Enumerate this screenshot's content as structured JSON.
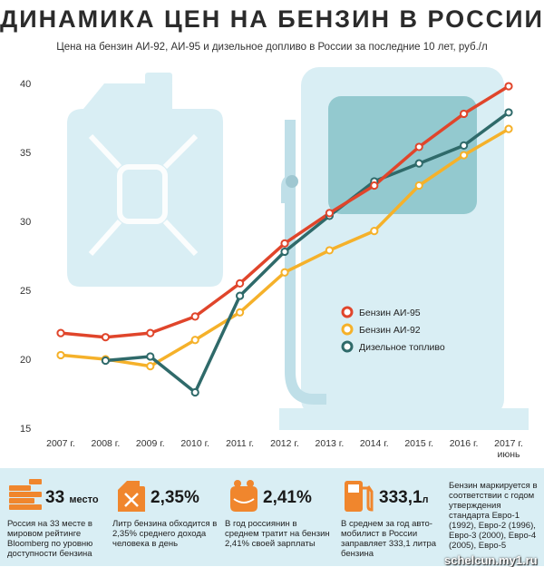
{
  "header": {
    "title": "ДИНАМИКА ЦЕН НА БЕНЗИН В РОССИИ",
    "subtitle": "Цена на бензин АИ-92, АИ-95 и дизельное допливо в России за последние 10 лет, руб./л"
  },
  "colors": {
    "ai95": "#e0452b",
    "ai92": "#f5b12a",
    "diesel": "#2f6a6a",
    "background_shape": "#d9eef4",
    "stats_band": "#d9eef4",
    "stat_icon": "#f0862d"
  },
  "chart_data": {
    "type": "line",
    "categories": [
      "2007 г.",
      "2008 г.",
      "2009 г.",
      "2010 г.",
      "2011 г.",
      "2012 г.",
      "2013 г.",
      "2014 г.",
      "2015 г.",
      "2016 г.",
      "2017 г."
    ],
    "last_category_note": "июнь",
    "yticks": [
      15,
      20,
      25,
      30,
      35,
      40
    ],
    "ylim": [
      15,
      40
    ],
    "grid": false,
    "legend_position": "center-right",
    "series": [
      {
        "name": "Бензин АИ-95",
        "key": "ai95",
        "values": [
          21.9,
          21.6,
          21.9,
          23.1,
          25.5,
          28.4,
          30.6,
          32.6,
          35.4,
          37.8,
          39.8
        ]
      },
      {
        "name": "Бензин АИ-92",
        "key": "ai92",
        "values": [
          20.3,
          20.0,
          19.5,
          21.4,
          23.4,
          26.3,
          27.9,
          29.3,
          32.6,
          34.8,
          36.7
        ]
      },
      {
        "name": "Дизельное топливо",
        "key": "diesel",
        "values": [
          null,
          19.9,
          20.2,
          17.6,
          24.6,
          27.8,
          30.4,
          32.9,
          34.2,
          35.5,
          37.9
        ]
      }
    ]
  },
  "stats": [
    {
      "big": "33",
      "big_suffix": "место",
      "icon": "stacked-coins-icon",
      "desc": "Россия на 33 месте в мировом рейтинге Bloomberg по уровню доступности бензина"
    },
    {
      "big": "2,35%",
      "big_suffix": "",
      "icon": "canister-icon",
      "desc": "Литр бензина обходится в 2,35% среднего дохода человека в день"
    },
    {
      "big": "2,41%",
      "big_suffix": "",
      "icon": "wallet-icon",
      "desc": "В год россиянин в среднем тратит на бензин 2,41% своей зарплаты"
    },
    {
      "big": "333,1",
      "big_suffix": "л",
      "icon": "fuel-pump-icon",
      "desc": "В среднем за год авто-мобилист в России заправляет 333,1 литра бензина"
    }
  ],
  "standards_note": "Бензин маркируется в соответствии с годом утверждения стандарта Евро-1 (1992), Евро-2 (1996), Евро-3 (2000), Евро-4 (2005), Евро-5",
  "watermark": "schelcun.my1.ru"
}
